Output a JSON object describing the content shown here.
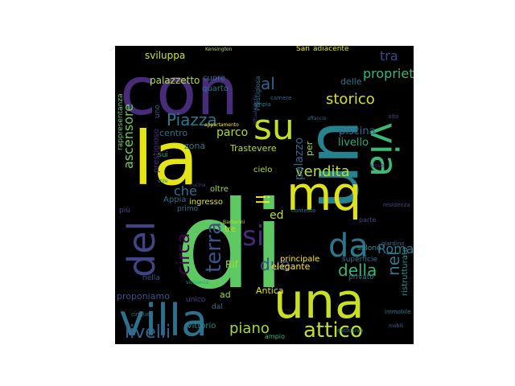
{
  "words": [
    {
      "id": "di",
      "text": "di",
      "color": "#5ec962"
    },
    {
      "id": "con",
      "text": "con",
      "color": "#472c7a"
    },
    {
      "id": "la",
      "text": "la",
      "color": "#e4e419"
    },
    {
      "id": "un",
      "text": "un",
      "color": "#26828e"
    },
    {
      "id": "mq",
      "text": "mq",
      "color": "#dde318"
    },
    {
      "id": "una",
      "text": "una",
      "color": "#c8e020"
    },
    {
      "id": "villa",
      "text": "villa",
      "color": "#2c728e"
    },
    {
      "id": "su",
      "text": "su",
      "color": "#c2df23"
    },
    {
      "id": "via",
      "text": "via",
      "color": "#3aba76"
    },
    {
      "id": "del",
      "text": "del",
      "color": "#414487"
    },
    {
      "id": "da",
      "text": "da",
      "color": "#2a788e"
    },
    {
      "id": "si",
      "text": "si",
      "color": "#482878"
    },
    {
      "id": "attico",
      "text": "attico",
      "color": "#c2df23"
    },
    {
      "id": "terra",
      "text": "terra",
      "color": "#3b528b"
    },
    {
      "id": "Piazza",
      "text": "Piazza",
      "color": "#2a788e"
    },
    {
      "id": "livelli",
      "text": "livelli",
      "color": "#33638d"
    },
    {
      "id": "vendita",
      "text": "vendita",
      "color": "#b5de2b"
    },
    {
      "id": "della",
      "text": "della",
      "color": "#35b779"
    },
    {
      "id": "il",
      "text": "il",
      "color": "#fde725"
    },
    {
      "id": "due",
      "text": "due",
      "color": "#3e4989"
    },
    {
      "id": "storico",
      "text": "storico",
      "color": "#d8e219"
    },
    {
      "id": "nel",
      "text": "nel",
      "color": "#2a788e"
    },
    {
      "id": "al",
      "text": "al",
      "color": "#33638d"
    },
    {
      "id": "circa",
      "text": "circa",
      "color": "#440154"
    },
    {
      "id": "tra",
      "text": "tra",
      "color": "#3e4989"
    },
    {
      "id": "proprieta",
      "text": "proprietà",
      "color": "#35b779"
    },
    {
      "id": "ascensore",
      "text": "ascensore",
      "color": "#6ece58"
    },
    {
      "id": "parco",
      "text": "parco",
      "color": "#addc30"
    },
    {
      "id": "che",
      "text": "che",
      "color": "#2c728e"
    },
    {
      "id": "piano",
      "text": "piano",
      "color": "#a0da39"
    },
    {
      "id": "Roma",
      "text": "Roma",
      "color": "#2a788e"
    },
    {
      "id": "palazzo",
      "text": "palazzo",
      "color": "#31688e"
    },
    {
      "id": "ed",
      "text": "ed",
      "color": "#bddf26"
    },
    {
      "id": "Rif",
      "text": "Rif",
      "color": "#a0da39"
    },
    {
      "id": "sviluppa",
      "text": "sviluppa",
      "color": "#d0e11c"
    },
    {
      "id": "palazzetto",
      "text": "palazzetto",
      "color": "#b5de2b"
    },
    {
      "id": "piscina",
      "text": "piscina",
      "color": "#31688e"
    },
    {
      "id": "livello",
      "text": "livello",
      "color": "#25ac82"
    },
    {
      "id": "Trastevere",
      "text": "Trastevere",
      "color": "#b5de2b"
    },
    {
      "id": "elegante",
      "text": "elegante",
      "color": "#fde725"
    },
    {
      "id": "principale",
      "text": "principale",
      "color": "#fde725"
    },
    {
      "id": "Antica",
      "text": "Antica",
      "color": "#e5e419"
    },
    {
      "id": "proponiamo",
      "text": "proponiamo",
      "color": "#3b528b"
    },
    {
      "id": "terrazze",
      "text": "terrazze",
      "color": "#a8db34"
    },
    {
      "id": "zona",
      "text": "zona",
      "color": "#2a788e"
    },
    {
      "id": "centro",
      "text": "centro",
      "color": "#2c728e"
    },
    {
      "id": "prestigioso",
      "text": "prestigioso",
      "color": "#472c7a"
    },
    {
      "id": "cielo",
      "text": "cielo",
      "color": "#b5de2b"
    },
    {
      "id": "ingresso",
      "text": "ingresso",
      "color": "#dde318"
    },
    {
      "id": "oltre",
      "text": "oltre",
      "color": "#a0da39"
    },
    {
      "id": "Appia",
      "text": "Appia",
      "color": "#2c728e"
    },
    {
      "id": "superficie",
      "text": "superficie",
      "color": "#2c728e"
    },
    {
      "id": "privato",
      "text": "privato",
      "color": "#2c728e"
    },
    {
      "id": "ristrutturato",
      "text": "ristrutturato",
      "color": "#21918c"
    },
    {
      "id": "delle",
      "text": "delle",
      "color": "#2c728e"
    },
    {
      "id": "per",
      "text": "per",
      "color": "#addc30"
    },
    {
      "id": "Vittorio",
      "text": "Vittorio",
      "color": "#21918c"
    },
    {
      "id": "cuore",
      "text": "cuore",
      "color": "#2a788e"
    },
    {
      "id": "quarto",
      "text": "quarto",
      "color": "#2a788e"
    },
    {
      "id": "San",
      "text": "San",
      "color": "#fde725"
    },
    {
      "id": "adiacente",
      "text": "adiacente",
      "color": "#d8e219"
    },
    {
      "id": "rappresentanza",
      "text": "rappresentanza",
      "color": "#65cb5e"
    },
    {
      "id": "unico",
      "text": "unico",
      "color": "#414487"
    },
    {
      "id": "dal",
      "text": "dal",
      "color": "#2c728e"
    },
    {
      "id": "ad",
      "text": "ad",
      "color": "#a0da39"
    },
    {
      "id": "nella",
      "text": "nella",
      "color": "#3b528b"
    },
    {
      "id": "sui",
      "text": "sui",
      "color": "#1f9e89"
    },
    {
      "id": "piu",
      "text": "più",
      "color": "#3e4989"
    },
    {
      "id": "primo",
      "text": "primo",
      "color": "#2c728e"
    },
    {
      "id": "uno",
      "text": "uno",
      "color": "#33638d"
    },
    {
      "id": "tre",
      "text": "tre",
      "color": "#bddf26"
    },
    {
      "id": "salone",
      "text": "salone",
      "color": "#21918c"
    },
    {
      "id": "parte",
      "text": "parte",
      "color": "#3e4989"
    },
    {
      "id": "prestigioso2",
      "text": "Prestigiosa",
      "color": "#2a788e"
    },
    {
      "id": "ampio",
      "text": "ampio",
      "color": "#35b779"
    },
    {
      "id": "cinque",
      "text": "cinque",
      "color": "#2c728e"
    },
    {
      "id": "alto",
      "text": "alto",
      "color": "#3e4989"
    },
    {
      "id": "esclusivo",
      "text": "esclusivo",
      "color": "#21918c"
    },
    {
      "id": "giardino",
      "text": "giardino",
      "color": "#2c728e"
    },
    {
      "id": "contesto",
      "text": "contesto",
      "color": "#2c728e"
    },
    {
      "id": "immobile",
      "text": "immobile",
      "color": "#2a788e"
    },
    {
      "id": "attualmente",
      "text": "attualmente",
      "color": "#414487"
    },
    {
      "id": "vicinanza",
      "text": "vicinanza",
      "color": "#1f9e89"
    },
    {
      "id": "residenza",
      "text": "residenza",
      "color": "#3e4989"
    },
    {
      "id": "affaccio",
      "text": "affaccio",
      "color": "#2c728e"
    },
    {
      "id": "lusso",
      "text": "lusso",
      "color": "#482878"
    },
    {
      "id": "mobili",
      "text": "mobili",
      "color": "#31688e"
    },
    {
      "id": "stile",
      "text": "stile",
      "color": "#26828e"
    },
    {
      "id": "Barberini",
      "text": "Barberini",
      "color": "#b5de2b"
    },
    {
      "id": "Kensington",
      "text": "Kensington",
      "color": "#b5de2b"
    },
    {
      "id": "cucina",
      "text": "cucina",
      "color": "#414487"
    },
    {
      "id": "camere",
      "text": "camere",
      "color": "#31688e"
    },
    {
      "id": "ampia",
      "text": "ampia",
      "color": "#2a788e"
    },
    {
      "id": "appartamento",
      "text": "appartamento",
      "color": "#fde725"
    }
  ]
}
